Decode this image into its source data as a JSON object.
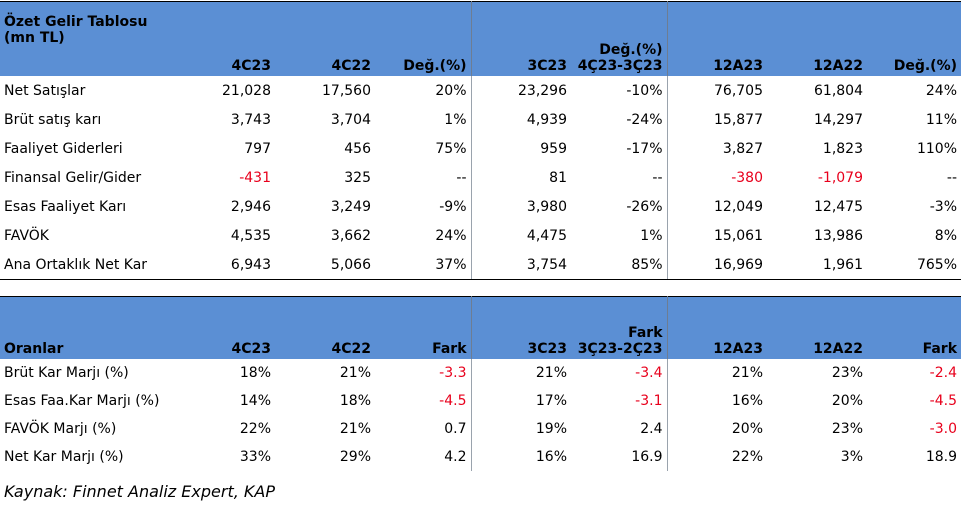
{
  "income": {
    "headers": {
      "label_line1": "Özet Gelir Tablosu",
      "label_line2": "(mn TL)",
      "c1": "4C23",
      "c2": "4C22",
      "c3": "Değ.(%)",
      "c4": "3C23",
      "c5_line1": "Değ.(%)",
      "c5_line2": "4Ç23-3Ç23",
      "c6": "12A23",
      "c7": "12A22",
      "c8": "Değ.(%)"
    },
    "rows": [
      {
        "label": "Net Satışlar",
        "v": [
          "21,028",
          "17,560",
          "20%",
          "23,296",
          "-10%",
          "76,705",
          "61,804",
          "24%"
        ],
        "neg": [
          false,
          false,
          false,
          false,
          false,
          false,
          false,
          false
        ]
      },
      {
        "label": "Brüt satış karı",
        "v": [
          "3,743",
          "3,704",
          "1%",
          "4,939",
          "-24%",
          "15,877",
          "14,297",
          "11%"
        ],
        "neg": [
          false,
          false,
          false,
          false,
          false,
          false,
          false,
          false
        ]
      },
      {
        "label": "Faaliyet Giderleri",
        "v": [
          "797",
          "456",
          "75%",
          "959",
          "-17%",
          "3,827",
          "1,823",
          "110%"
        ],
        "neg": [
          false,
          false,
          false,
          false,
          false,
          false,
          false,
          false
        ]
      },
      {
        "label": "Finansal Gelir/Gider",
        "v": [
          "-431",
          "325",
          "--",
          "81",
          "--",
          "-380",
          "-1,079",
          "--"
        ],
        "neg": [
          true,
          false,
          false,
          false,
          false,
          true,
          true,
          false
        ]
      },
      {
        "label": "Esas Faaliyet Karı",
        "v": [
          "2,946",
          "3,249",
          "-9%",
          "3,980",
          "-26%",
          "12,049",
          "12,475",
          "-3%"
        ],
        "neg": [
          false,
          false,
          false,
          false,
          false,
          false,
          false,
          false
        ]
      },
      {
        "label": "FAVÖK",
        "v": [
          "4,535",
          "3,662",
          "24%",
          "4,475",
          "1%",
          "15,061",
          "13,986",
          "8%"
        ],
        "neg": [
          false,
          false,
          false,
          false,
          false,
          false,
          false,
          false
        ]
      },
      {
        "label": "Ana Ortaklık Net Kar",
        "v": [
          "6,943",
          "5,066",
          "37%",
          "3,754",
          "85%",
          "16,969",
          "1,961",
          "765%"
        ],
        "neg": [
          false,
          false,
          false,
          false,
          false,
          false,
          false,
          false
        ]
      }
    ]
  },
  "ratios": {
    "headers": {
      "label": "Oranlar",
      "c1": "4C23",
      "c2": "4C22",
      "c3": "Fark",
      "c4": "3C23",
      "c5_line1": "Fark",
      "c5_line2": "3Ç23-2Ç23",
      "c6": "12A23",
      "c7": "12A22",
      "c8": "Fark"
    },
    "rows": [
      {
        "label": "Brüt Kar Marjı (%)",
        "v": [
          "18%",
          "21%",
          "-3.3",
          "21%",
          "-3.4",
          "21%",
          "23%",
          "-2.4"
        ],
        "neg": [
          false,
          false,
          true,
          false,
          true,
          false,
          false,
          true
        ]
      },
      {
        "label": "Esas Faa.Kar Marjı (%)",
        "v": [
          "14%",
          "18%",
          "-4.5",
          "17%",
          "-3.1",
          "16%",
          "20%",
          "-4.5"
        ],
        "neg": [
          false,
          false,
          true,
          false,
          true,
          false,
          false,
          true
        ]
      },
      {
        "label": "FAVÖK Marjı (%)",
        "v": [
          "22%",
          "21%",
          "0.7",
          "19%",
          "2.4",
          "20%",
          "23%",
          "-3.0"
        ],
        "neg": [
          false,
          false,
          false,
          false,
          false,
          false,
          false,
          true
        ]
      },
      {
        "label": "Net Kar Marjı (%)",
        "v": [
          "33%",
          "29%",
          "4.2",
          "16%",
          "16.9",
          "22%",
          "3%",
          "18.9"
        ],
        "neg": [
          false,
          false,
          false,
          false,
          false,
          false,
          false,
          false
        ]
      }
    ]
  },
  "source": "Kaynak: Finnet Analiz Expert, KAP",
  "colors": {
    "header_bg": "#5b8fd4",
    "negative": "#e8001c"
  }
}
